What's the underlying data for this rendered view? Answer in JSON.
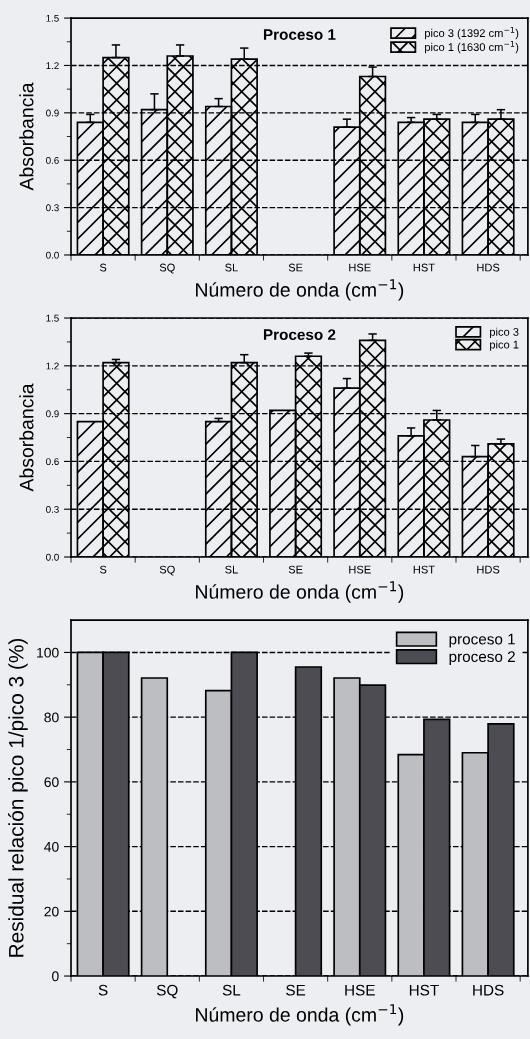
{
  "chart_data": [
    {
      "type": "bar",
      "title": "Proceso 1",
      "xlabel": "Número de onda (cm$^{−1}$)",
      "ylabel": "Absorbancia",
      "categories": [
        "S",
        "SQ",
        "SL",
        "SE",
        "HSE",
        "HST",
        "HDS"
      ],
      "series": [
        {
          "name": "pico 3 (1392 cm$^{−1}$)",
          "color": "#000000",
          "values": [
            0.84,
            0.92,
            0.94,
            null,
            0.81,
            0.84,
            0.84
          ],
          "errors": [
            [
              0.84,
              0.89
            ],
            [
              0.92,
              1.02
            ],
            [
              0.94,
              0.99
            ],
            null,
            [
              0.81,
              0.86
            ],
            [
              0.84,
              0.87
            ],
            [
              0.84,
              0.89
            ]
          ]
        },
        {
          "name": "pico 1 (1630 cm$^{−1}$)",
          "color": "#000000",
          "values": [
            1.25,
            1.26,
            1.24,
            null,
            1.13,
            0.86,
            0.86
          ],
          "errors": [
            [
              1.25,
              1.33
            ],
            [
              1.26,
              1.33
            ],
            [
              1.24,
              1.31
            ],
            null,
            [
              1.13,
              1.19
            ],
            [
              0.86,
              0.89
            ],
            [
              0.86,
              0.92
            ]
          ]
        }
      ],
      "ylim": [
        0,
        1.5
      ],
      "yticks": [
        {
          "value": 0,
          "label": "0.0"
        },
        0.3,
        0.6,
        0.9,
        1.2,
        1.5
      ],
      "grid": "y",
      "legend": "top right"
    },
    {
      "type": "bar",
      "title": "Proceso 2",
      "xlabel": "Número de onda (cm$^{−1}$)",
      "ylabel": "Absorbancia",
      "categories": [
        "S",
        "SQ",
        "SL",
        "SE",
        "HSE",
        "HST",
        "HDS"
      ],
      "series": [
        {
          "name": "pico 3",
          "color": "#000000",
          "values": [
            0.85,
            null,
            0.85,
            0.92,
            1.06,
            0.76,
            0.63
          ],
          "errors": [
            null,
            null,
            [
              0.85,
              0.87
            ],
            null,
            [
              1.06,
              1.12
            ],
            [
              0.76,
              0.81
            ],
            [
              0.63,
              0.7
            ]
          ]
        },
        {
          "name": "pico 1",
          "color": "#000000",
          "values": [
            1.22,
            null,
            1.22,
            1.26,
            1.36,
            0.86,
            0.71
          ],
          "errors": [
            [
              1.22,
              1.24
            ],
            null,
            [
              1.22,
              1.27
            ],
            [
              1.26,
              1.28
            ],
            [
              1.36,
              1.4
            ],
            [
              0.86,
              0.92
            ],
            [
              0.71,
              0.74
            ]
          ]
        }
      ],
      "ylim": [
        0,
        1.5
      ],
      "yticks": [
        {
          "value": 0,
          "label": "0.0"
        },
        0.3,
        0.6,
        0.9,
        1.2,
        1.5
      ],
      "grid": "y",
      "legend": "top right"
    },
    {
      "type": "bar",
      "xlabel": "Número de onda (cm$^{−1}$)",
      "ylabel": "Residual relación pico 1/pico 3 (%)",
      "categories": [
        "S",
        "SQ",
        "SL",
        "SE",
        "HSE",
        "HST",
        "HDS"
      ],
      "series": [
        {
          "name": "proceso 1",
          "color": "#bdbec2",
          "values": [
            100,
            92.1,
            88.2,
            null,
            92.1,
            68.4,
            69.0
          ]
        },
        {
          "name": "proceso 2",
          "color": "#4d4c52",
          "values": [
            100,
            null,
            100,
            95.5,
            89.9,
            79.3,
            77.9
          ]
        }
      ],
      "ylim": [
        0,
        110
      ],
      "yticks": [
        0,
        20,
        40,
        60,
        80,
        100
      ],
      "grid": "y",
      "legend": "top right"
    }
  ]
}
